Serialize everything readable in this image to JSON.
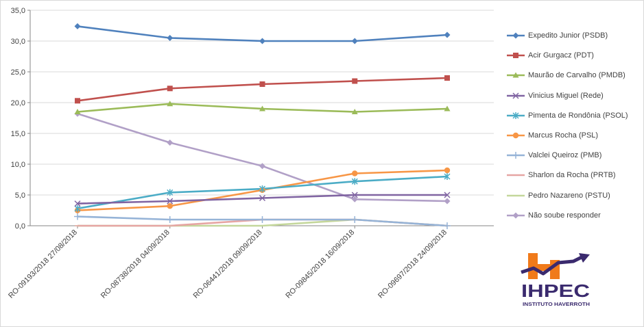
{
  "chart_data": {
    "type": "line",
    "categories": [
      "RO-09193/2018 27/08/2018",
      "RO-08738/2018 04/09/2018",
      "RO-06441/2018 09/09/2018",
      "RO-09845/2018 16/09/2018",
      "RO-09697/2018 24/09/2018"
    ],
    "ylim": [
      0,
      35
    ],
    "yticks": [
      "0,0",
      "5,0",
      "10,0",
      "15,0",
      "20,0",
      "25,0",
      "30,0",
      "35,0"
    ],
    "ytick_values": [
      0,
      5,
      10,
      15,
      20,
      25,
      30,
      35
    ],
    "grid": "horizontal",
    "legend_position": "right",
    "series": [
      {
        "name": "Expedito Junior (PSDB)",
        "color": "#4F81BD",
        "marker": "diamond",
        "values": [
          32.4,
          30.5,
          30.0,
          30.0,
          31.0
        ]
      },
      {
        "name": "Acir Gurgacz (PDT)",
        "color": "#C0504D",
        "marker": "square",
        "values": [
          20.3,
          22.3,
          23.0,
          23.5,
          24.0
        ]
      },
      {
        "name": "Maurão de Carvalho (PMDB)",
        "color": "#9BBB59",
        "marker": "triangle",
        "values": [
          18.5,
          19.8,
          19.0,
          18.5,
          19.0
        ]
      },
      {
        "name": "Vinicius Miguel (Rede)",
        "color": "#8064A2",
        "marker": "x",
        "values": [
          3.6,
          4.0,
          4.5,
          5.0,
          5.0
        ]
      },
      {
        "name": "Pimenta de Rondônia (PSOL)",
        "color": "#4BACC6",
        "marker": "star",
        "values": [
          2.8,
          5.4,
          6.0,
          7.2,
          8.0
        ]
      },
      {
        "name": "Marcus Rocha (PSL)",
        "color": "#F79646",
        "marker": "circle",
        "values": [
          2.5,
          3.2,
          5.8,
          8.5,
          9.0
        ]
      },
      {
        "name": "Valclei Queiroz (PMB)",
        "color": "#95B3D7",
        "marker": "plus",
        "values": [
          1.5,
          1.0,
          1.0,
          1.0,
          0.0
        ]
      },
      {
        "name": "Sharlon da Rocha (PRTB)",
        "color": "#E6A5A3",
        "marker": "dash",
        "values": [
          0.0,
          0.0,
          1.0,
          1.0,
          0.0
        ]
      },
      {
        "name": "Pedro Nazareno (PSTU)",
        "color": "#C4D79B",
        "marker": "dash",
        "values": [
          0.0,
          0.0,
          0.0,
          1.0,
          0.0
        ]
      },
      {
        "name": "Não soube responder",
        "color": "#B1A0C7",
        "marker": "diamond",
        "values": [
          18.2,
          13.5,
          9.7,
          4.3,
          4.0
        ]
      }
    ]
  },
  "logo": {
    "text": "IHPEC",
    "subtitle": "INSTITUTO HAVERROTH",
    "colors": {
      "orange": "#F07A1A",
      "purple": "#3A2A6E"
    }
  }
}
